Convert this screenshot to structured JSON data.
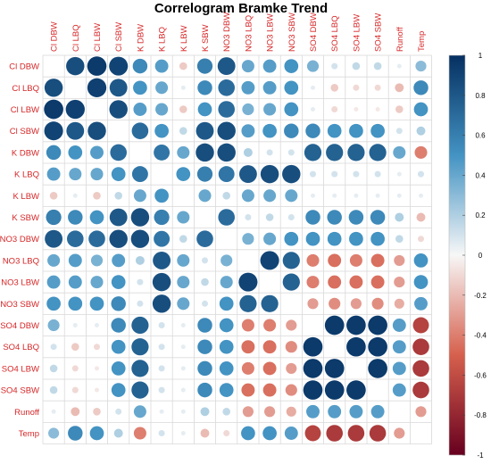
{
  "chart_data": {
    "type": "heatmap",
    "title": "Correlogram Bramke Trend",
    "variables": [
      "Cl DBW",
      "Cl LBQ",
      "Cl LBW",
      "Cl SBW",
      "K DBW",
      "K LBQ",
      "K LBW",
      "K SBW",
      "NO3 DBW",
      "NO3 LBQ",
      "NO3 LBW",
      "NO3 SBW",
      "SO4 DBW",
      "SO4 LBQ",
      "SO4 LBW",
      "SO4 SBW",
      "Runoff",
      "Temp"
    ],
    "matrix": [
      [
        1.0,
        0.85,
        0.95,
        0.9,
        0.55,
        0.45,
        -0.15,
        0.6,
        0.8,
        0.4,
        0.45,
        0.5,
        0.35,
        0.1,
        0.15,
        0.15,
        0.05,
        0.3
      ],
      [
        0.85,
        1.0,
        0.92,
        0.8,
        0.5,
        0.4,
        0.05,
        0.55,
        0.7,
        0.45,
        0.45,
        0.5,
        0.05,
        -0.15,
        -0.1,
        -0.1,
        -0.2,
        0.55
      ],
      [
        0.95,
        0.92,
        1.0,
        0.85,
        0.45,
        0.4,
        -0.15,
        0.5,
        0.7,
        0.35,
        0.4,
        0.5,
        0.05,
        -0.1,
        -0.05,
        -0.05,
        -0.15,
        0.5
      ],
      [
        0.9,
        0.8,
        0.85,
        1.0,
        0.7,
        0.5,
        0.15,
        0.8,
        0.85,
        0.45,
        0.5,
        0.55,
        0.55,
        0.5,
        0.5,
        0.5,
        0.1,
        0.2
      ],
      [
        0.55,
        0.5,
        0.45,
        0.7,
        1.0,
        0.65,
        0.4,
        0.85,
        0.85,
        0.2,
        0.1,
        0.1,
        0.75,
        0.75,
        0.75,
        0.75,
        0.4,
        -0.4
      ],
      [
        0.45,
        0.4,
        0.4,
        0.5,
        0.65,
        1.0,
        0.5,
        0.6,
        0.65,
        0.8,
        0.85,
        0.85,
        0.1,
        0.1,
        0.1,
        0.1,
        0.05,
        0.1
      ],
      [
        -0.15,
        0.05,
        -0.15,
        0.15,
        0.4,
        0.5,
        1.0,
        0.4,
        0.15,
        0.4,
        0.4,
        0.4,
        0.05,
        0.05,
        0.05,
        0.05,
        0.05,
        0.05
      ],
      [
        0.6,
        0.55,
        0.5,
        0.8,
        0.85,
        0.6,
        0.4,
        1.0,
        0.7,
        0.1,
        0.15,
        0.1,
        0.55,
        0.55,
        0.55,
        0.55,
        0.2,
        -0.2
      ],
      [
        0.8,
        0.7,
        0.7,
        0.85,
        0.85,
        0.65,
        0.15,
        0.7,
        1.0,
        0.35,
        0.4,
        0.5,
        0.5,
        0.5,
        0.5,
        0.5,
        0.15,
        -0.1
      ],
      [
        0.4,
        0.45,
        0.35,
        0.45,
        0.2,
        0.8,
        0.4,
        0.1,
        0.35,
        1.0,
        0.9,
        0.75,
        -0.4,
        -0.45,
        -0.4,
        -0.45,
        -0.3,
        0.5
      ],
      [
        0.45,
        0.45,
        0.4,
        0.5,
        0.1,
        0.85,
        0.4,
        0.15,
        0.4,
        0.9,
        1.0,
        0.75,
        -0.4,
        -0.45,
        -0.45,
        -0.45,
        -0.3,
        0.5
      ],
      [
        0.5,
        0.5,
        0.5,
        0.55,
        0.1,
        0.85,
        0.4,
        0.1,
        0.5,
        0.75,
        0.75,
        1.0,
        -0.3,
        -0.35,
        -0.3,
        -0.35,
        -0.25,
        0.45
      ],
      [
        0.35,
        0.05,
        0.05,
        0.55,
        0.75,
        0.1,
        0.05,
        0.55,
        0.5,
        -0.4,
        -0.4,
        -0.3,
        1.0,
        0.95,
        0.95,
        0.95,
        0.45,
        -0.65
      ],
      [
        0.1,
        -0.15,
        -0.1,
        0.5,
        0.75,
        0.1,
        0.05,
        0.55,
        0.5,
        -0.45,
        -0.45,
        -0.35,
        0.95,
        1.0,
        0.95,
        0.95,
        0.45,
        -0.7
      ],
      [
        0.15,
        -0.1,
        -0.05,
        0.5,
        0.75,
        0.1,
        0.05,
        0.55,
        0.5,
        -0.4,
        -0.45,
        -0.3,
        0.95,
        0.95,
        1.0,
        0.95,
        0.45,
        -0.7
      ],
      [
        0.15,
        -0.1,
        -0.05,
        0.5,
        0.75,
        0.1,
        0.05,
        0.55,
        0.5,
        -0.45,
        -0.45,
        -0.35,
        0.95,
        0.95,
        0.95,
        1.0,
        0.45,
        -0.7
      ],
      [
        0.05,
        -0.2,
        -0.15,
        0.1,
        0.4,
        0.05,
        0.05,
        0.2,
        0.15,
        -0.3,
        -0.3,
        -0.25,
        0.45,
        0.45,
        0.45,
        0.45,
        1.0,
        -0.3
      ],
      [
        0.3,
        0.55,
        0.5,
        0.2,
        -0.4,
        0.1,
        0.05,
        -0.2,
        -0.1,
        0.5,
        0.5,
        0.45,
        -0.65,
        -0.7,
        -0.7,
        -0.7,
        -0.3,
        1.0
      ]
    ],
    "diagonal_shown": false,
    "colorbar": {
      "ticks": [
        1,
        0.8,
        0.6,
        0.4,
        0.2,
        0,
        -0.2,
        -0.4,
        -0.6,
        -0.8,
        -1
      ],
      "labels": [
        "1",
        "0.8",
        "0.6",
        "0.4",
        "0.2",
        "0",
        "-0.2",
        "-0.4",
        "-0.6",
        "-0.8",
        "-1"
      ],
      "range": [
        -1,
        1
      ],
      "colors": {
        "negative_strong": "#67001F",
        "negative_mid": "#D6604D",
        "neutral": "#F7F7F7",
        "positive_mid": "#4393C3",
        "positive_strong": "#053061"
      }
    },
    "label_color": "#D62728",
    "grid": true
  }
}
